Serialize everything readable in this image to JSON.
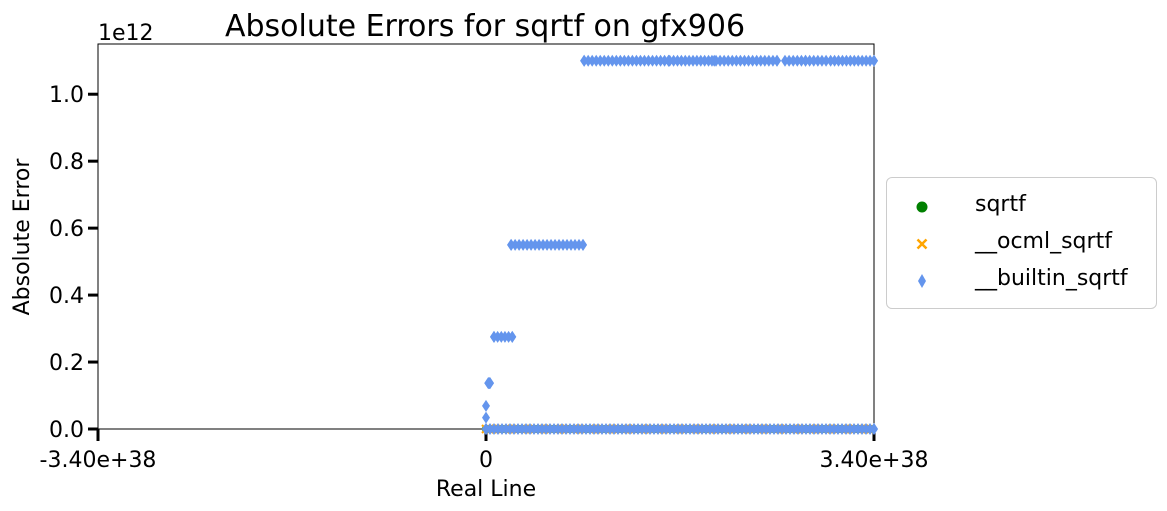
{
  "chart_data": {
    "type": "scatter",
    "title": "Absolute Errors for sqrtf on gfx906",
    "xlabel": "Real Line",
    "ylabel": "Absolute Error",
    "y_offset_label": "1e12",
    "y_scale": 1000000000000.0,
    "xlim": [
      -3.4e+38,
      3.4e+38
    ],
    "ylim": [
      0,
      1150000000000.0
    ],
    "x_ticks": [
      -3.4e+38,
      0,
      3.4e+38
    ],
    "x_tick_labels": [
      "-3.40e+38",
      "0",
      "3.40e+38"
    ],
    "y_ticks": [
      0,
      200000000000.0,
      400000000000.0,
      600000000000.0,
      800000000000.0,
      1000000000000.0
    ],
    "y_tick_labels": [
      "0.0",
      "0.2",
      "0.4",
      "0.6",
      "0.8",
      "1.0"
    ],
    "grid": false,
    "legend_position": "center-right-outside",
    "series": [
      {
        "name": "sqrtf",
        "marker": "circle",
        "color": "#008000",
        "x_range": [
          0,
          3.4e+38
        ],
        "y_constant": 0
      },
      {
        "name": "__ocml_sqrtf",
        "marker": "x",
        "color": "#FFA500",
        "x_range": [
          0,
          3.4e+38
        ],
        "y_constant": 0
      },
      {
        "name": "__builtin_sqrtf",
        "marker": "thin-diamond",
        "color": "#6495ED",
        "points": [
          {
            "x": 0.0,
            "y": 0
          },
          {
            "x": 0.0,
            "y": 34000000000.0
          },
          {
            "x": 0.0,
            "y": 69000000000.0
          },
          {
            "x": 2e+36,
            "y": 137000000000.0
          },
          {
            "x": 3.5e+36,
            "y": 137000000000.0
          },
          {
            "x": 7e+36,
            "y": 275000000000.0
          },
          {
            "x": 2.3e+37,
            "y": 275000000000.0
          },
          {
            "x": 2.2e+37,
            "y": 550000000000.0
          },
          {
            "x": 8.5e+37,
            "y": 550000000000.0
          },
          {
            "x": 8.6e+37,
            "y": 1100000000000.0
          },
          {
            "x": 1.6e+38,
            "y": 1100000000000.0
          },
          {
            "x": 2e+38,
            "y": 1100000000000.0
          },
          {
            "x": 2.55e+38,
            "y": 1100000000000.0
          },
          {
            "x": 2.8e+38,
            "y": 1100000000000.0
          },
          {
            "x": 3.4e+38,
            "y": 1100000000000.0
          },
          {
            "x": 0.0,
            "y": 0
          },
          {
            "x": 3.4e+38,
            "y": 0
          }
        ],
        "segments": [
          {
            "x_from": 2e+36,
            "x_to": 3.5e+36,
            "y": 137000000000.0
          },
          {
            "x_from": 7e+36,
            "x_to": 2.3e+37,
            "y": 275000000000.0
          },
          {
            "x_from": 2.2e+37,
            "x_to": 8.5e+37,
            "y": 550000000000.0
          },
          {
            "x_from": 8.6e+37,
            "x_to": 1.6e+38,
            "y": 1100000000000.0
          },
          {
            "x_from": 1.61e+38,
            "x_to": 1.95e+38,
            "y": 1100000000000.0
          },
          {
            "x_from": 1.98e+38,
            "x_to": 2.55e+38,
            "y": 1100000000000.0
          },
          {
            "x_from": 2.62e+38,
            "x_to": 2.98e+38,
            "y": 1100000000000.0
          },
          {
            "x_from": 3.02e+38,
            "x_to": 3.4e+38,
            "y": 1100000000000.0
          },
          {
            "x_from": 0,
            "x_to": 3.4e+38,
            "y": 0
          }
        ]
      }
    ]
  }
}
